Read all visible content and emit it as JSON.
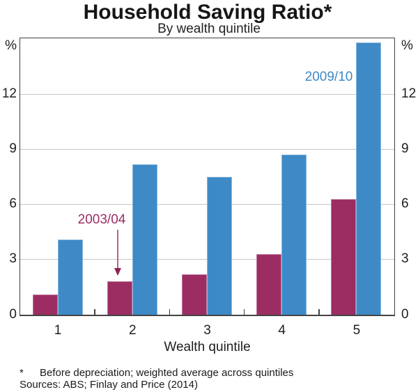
{
  "chart_data": {
    "type": "bar",
    "title": "Household Saving Ratio*",
    "subtitle": "By wealth quintile",
    "categories": [
      "1",
      "2",
      "3",
      "4",
      "5"
    ],
    "series": [
      {
        "name": "2003/04",
        "color": "#9c2d63",
        "values": [
          1.1,
          1.8,
          2.2,
          3.3,
          6.3
        ]
      },
      {
        "name": "2009/10",
        "color": "#3e8ac6",
        "values": [
          4.1,
          8.2,
          7.5,
          8.7,
          14.8
        ]
      }
    ],
    "xlabel": "Wealth quintile",
    "ylabel_left": "%",
    "ylabel_right": "%",
    "ylim": [
      0,
      15
    ],
    "yticks": [
      0,
      3,
      6,
      9,
      12
    ],
    "grid": true,
    "legend_position": "in-plot annotations with arrow",
    "annotations": [
      {
        "text": "2003/04",
        "color": "#9c2d63",
        "arrow_color": "#b4648e",
        "points_to": "quintile 2, 2003/04 bar"
      },
      {
        "text": "2009/10",
        "color": "#3e8ac6"
      }
    ]
  },
  "footnotes": {
    "marker": "*",
    "note": "Before depreciation; weighted average across quintiles",
    "sources": "Sources: ABS; Finlay and Price (2014)"
  }
}
